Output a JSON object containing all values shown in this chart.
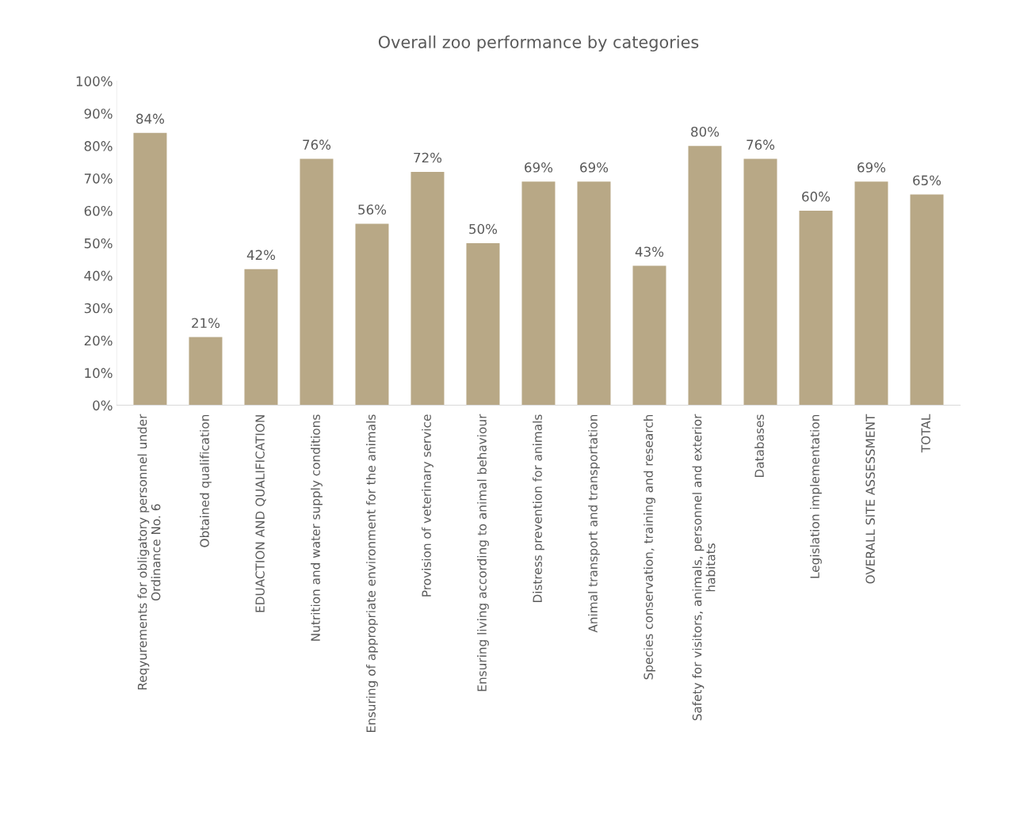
{
  "chart_data": {
    "type": "bar",
    "title": "Overall zoo performance by categories",
    "categories": [
      "Reqyurements for obligatory personnel under\nOrdinance No. 6",
      "Obtained qualification",
      "EDUACTION AND QUALIFICATION",
      "Nutrition and water supply conditions",
      "Ensuring of appropriate environment for the animals",
      "Provision of veterinary service",
      "Ensuring living according to animal behaviour",
      "Distress prevention for animals",
      "Animal transport and transportation",
      "Species conservation, training and research",
      "Safety for visitors, animals, personnel and exterior\nhabitats",
      "Databases",
      "Legislation implementation",
      "OVERALL SITE ASSESSMENT",
      "TOTAL"
    ],
    "values": [
      84,
      21,
      42,
      76,
      56,
      72,
      50,
      69,
      69,
      43,
      80,
      76,
      60,
      69,
      65
    ],
    "value_labels": [
      "84%",
      "21%",
      "42%",
      "76%",
      "56%",
      "72%",
      "50%",
      "69%",
      "69%",
      "43%",
      "80%",
      "76%",
      "60%",
      "69%",
      "65%"
    ],
    "color": "#b8a886",
    "ylim": [
      0,
      100
    ],
    "yticks": [
      {
        "value": 0,
        "label": "0%"
      },
      {
        "value": 10,
        "label": "10%"
      },
      {
        "value": 20,
        "label": "20%"
      },
      {
        "value": 30,
        "label": "30%"
      },
      {
        "value": 40,
        "label": "40%"
      },
      {
        "value": 50,
        "label": "50%"
      },
      {
        "value": 60,
        "label": "60%"
      },
      {
        "value": 70,
        "label": "70%"
      },
      {
        "value": 80,
        "label": "80%"
      },
      {
        "value": 90,
        "label": "90%"
      },
      {
        "value": 100,
        "label": "100%"
      }
    ],
    "grid": false
  }
}
